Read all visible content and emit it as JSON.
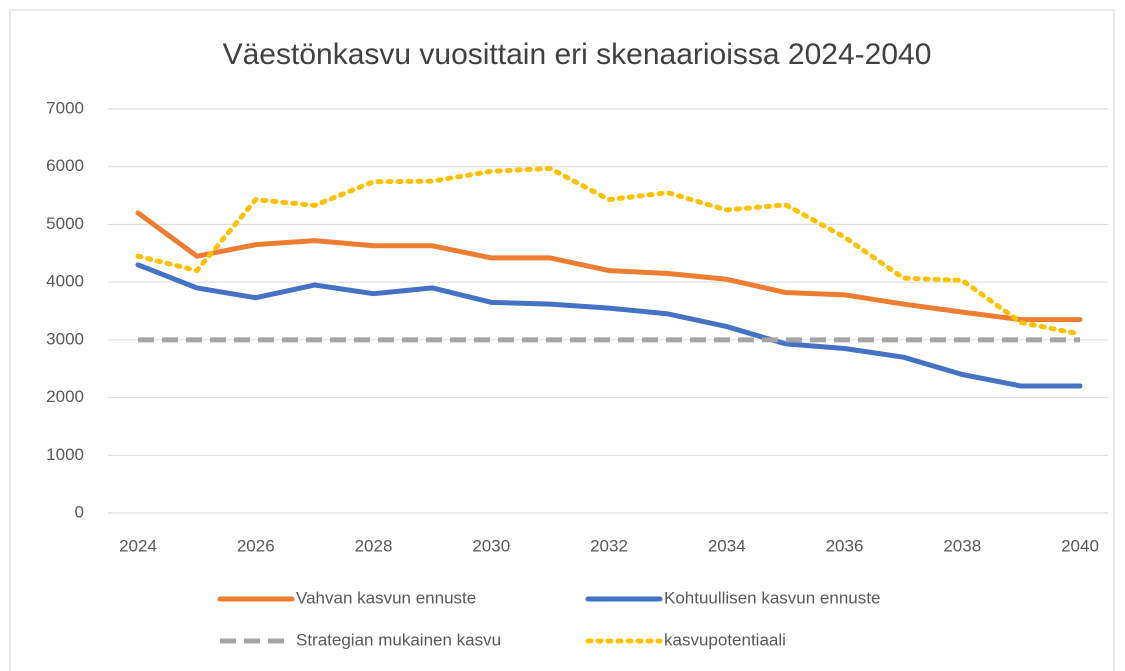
{
  "chart_data": {
    "type": "line",
    "title": "Väestönkasvu vuosittain eri skenaarioissa 2024-2040",
    "x": [
      2024,
      2025,
      2026,
      2027,
      2028,
      2029,
      2030,
      2031,
      2032,
      2033,
      2034,
      2035,
      2036,
      2037,
      2038,
      2039,
      2040
    ],
    "xlim": [
      2024,
      2040
    ],
    "xticks": [
      2024,
      2026,
      2028,
      2030,
      2032,
      2034,
      2036,
      2038,
      2040
    ],
    "ylim": [
      0,
      7000
    ],
    "yticks": [
      0,
      1000,
      2000,
      3000,
      4000,
      5000,
      6000,
      7000
    ],
    "grid": true,
    "legend": "bottom",
    "series": [
      {
        "name": "Vahvan kasvun ennuste",
        "color": "#ed7d31",
        "style": "solid",
        "values": [
          5200,
          4450,
          4650,
          4720,
          4630,
          4630,
          4420,
          4420,
          4200,
          4150,
          4050,
          3820,
          3780,
          3620,
          3480,
          3350,
          3350
        ]
      },
      {
        "name": "Kohtuullisen kasvun ennuste",
        "color": "#4472c4",
        "style": "solid",
        "values": [
          4300,
          3900,
          3730,
          3950,
          3800,
          3900,
          3650,
          3620,
          3550,
          3450,
          3230,
          2930,
          2850,
          2700,
          2400,
          2200,
          2200
        ]
      },
      {
        "name": "Strategian mukainen kasvu",
        "color": "#a5a5a5",
        "style": "dashed",
        "values": [
          3000,
          3000,
          3000,
          3000,
          3000,
          3000,
          3000,
          3000,
          3000,
          3000,
          3000,
          3000,
          3000,
          3000,
          3000,
          3000,
          3000
        ]
      },
      {
        "name": "kasvupotentiaali",
        "color": "#ffc000",
        "style": "dotted",
        "values": [
          4450,
          4200,
          5430,
          5330,
          5740,
          5750,
          5920,
          5970,
          5430,
          5550,
          5250,
          5340,
          4780,
          4070,
          4030,
          3300,
          3100
        ]
      }
    ]
  }
}
